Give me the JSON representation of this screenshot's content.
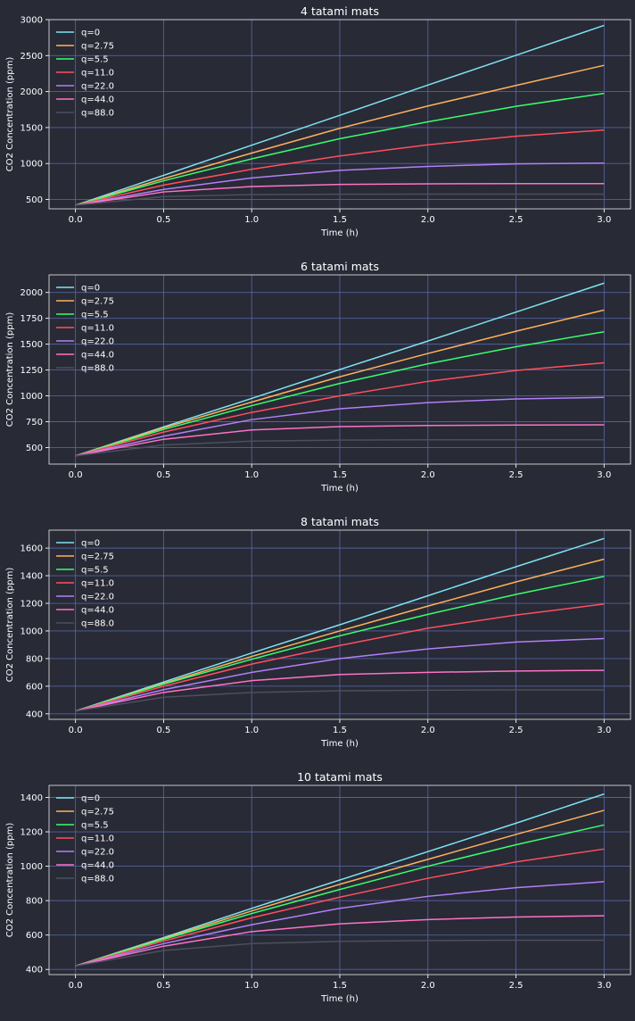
{
  "chart_data": [
    {
      "type": "line",
      "title": "4 tatami mats",
      "xlabel": "Time (h)",
      "ylabel": "CO2 Concentration (ppm)",
      "xlim": [
        -0.15,
        3.15
      ],
      "ylim": [
        370,
        3000
      ],
      "xticks": [
        0.0,
        0.5,
        1.0,
        1.5,
        2.0,
        2.5,
        3.0
      ],
      "xtick_labels": [
        "0.0",
        "0.5",
        "1.0",
        "1.5",
        "2.0",
        "2.5",
        "3.0"
      ],
      "yticks": [
        500,
        1000,
        1500,
        2000,
        2500,
        3000
      ],
      "ytick_labels": [
        "500",
        "1000",
        "1500",
        "2000",
        "2500",
        "3000"
      ],
      "grid": true,
      "legend": "top-left",
      "x": [
        0,
        0.5,
        1.0,
        1.5,
        2.0,
        2.5,
        3.0
      ],
      "series": [
        {
          "name": "q=0",
          "color": "#7fe3f0",
          "values": [
            420,
            835,
            1255,
            1670,
            2090,
            2505,
            2920
          ]
        },
        {
          "name": "q=2.75",
          "color": "#ffb25a",
          "values": [
            420,
            790,
            1145,
            1490,
            1800,
            2085,
            2365
          ]
        },
        {
          "name": "q=5.5",
          "color": "#39ff6b",
          "values": [
            420,
            760,
            1065,
            1345,
            1580,
            1795,
            1975
          ]
        },
        {
          "name": "q=11.0",
          "color": "#ff4f5c",
          "values": [
            420,
            700,
            920,
            1105,
            1260,
            1380,
            1465
          ]
        },
        {
          "name": "q=22.0",
          "color": "#b27ff7",
          "values": [
            420,
            640,
            800,
            905,
            960,
            995,
            1005
          ]
        },
        {
          "name": "q=44.0",
          "color": "#ff72c6",
          "values": [
            420,
            605,
            680,
            710,
            718,
            720,
            720
          ]
        },
        {
          "name": "q=88.0",
          "color": "#4b4f5e",
          "values": [
            420,
            540,
            568,
            573,
            575,
            575,
            575
          ]
        }
      ]
    },
    {
      "type": "line",
      "title": "6 tatami mats",
      "xlabel": "Time (h)",
      "ylabel": "CO2 Concentration (ppm)",
      "xlim": [
        -0.15,
        3.15
      ],
      "ylim": [
        340,
        2170
      ],
      "xticks": [
        0.0,
        0.5,
        1.0,
        1.5,
        2.0,
        2.5,
        3.0
      ],
      "xtick_labels": [
        "0.0",
        "0.5",
        "1.0",
        "1.5",
        "2.0",
        "2.5",
        "3.0"
      ],
      "yticks": [
        500,
        750,
        1000,
        1250,
        1500,
        1750,
        2000
      ],
      "ytick_labels": [
        "500",
        "750",
        "1000",
        "1250",
        "1500",
        "1750",
        "2000"
      ],
      "grid": true,
      "legend": "top-left",
      "x": [
        0,
        0.5,
        1.0,
        1.5,
        2.0,
        2.5,
        3.0
      ],
      "series": [
        {
          "name": "q=0",
          "color": "#7fe3f0",
          "values": [
            420,
            700,
            975,
            1255,
            1530,
            1810,
            2090
          ]
        },
        {
          "name": "q=2.75",
          "color": "#ffb25a",
          "values": [
            420,
            690,
            940,
            1185,
            1410,
            1625,
            1830
          ]
        },
        {
          "name": "q=5.5",
          "color": "#39ff6b",
          "values": [
            420,
            675,
            905,
            1120,
            1310,
            1475,
            1620
          ]
        },
        {
          "name": "q=11.0",
          "color": "#ff4f5c",
          "values": [
            420,
            650,
            840,
            1000,
            1140,
            1245,
            1320
          ]
        },
        {
          "name": "q=22.0",
          "color": "#b27ff7",
          "values": [
            420,
            610,
            770,
            875,
            935,
            970,
            985
          ]
        },
        {
          "name": "q=44.0",
          "color": "#ff72c6",
          "values": [
            420,
            580,
            670,
            702,
            713,
            718,
            720
          ]
        },
        {
          "name": "q=88.0",
          "color": "#4b4f5e",
          "values": [
            420,
            525,
            562,
            572,
            575,
            575,
            575
          ]
        }
      ]
    },
    {
      "type": "line",
      "title": "8 tatami mats",
      "xlabel": "Time (h)",
      "ylabel": "CO2 Concentration (ppm)",
      "xlim": [
        -0.15,
        3.15
      ],
      "ylim": [
        360,
        1730
      ],
      "xticks": [
        0.0,
        0.5,
        1.0,
        1.5,
        2.0,
        2.5,
        3.0
      ],
      "xtick_labels": [
        "0.0",
        "0.5",
        "1.0",
        "1.5",
        "2.0",
        "2.5",
        "3.0"
      ],
      "yticks": [
        400,
        600,
        800,
        1000,
        1200,
        1400,
        1600
      ],
      "ytick_labels": [
        "400",
        "600",
        "800",
        "1000",
        "1200",
        "1400",
        "1600"
      ],
      "grid": true,
      "legend": "top-left",
      "x": [
        0,
        0.5,
        1.0,
        1.5,
        2.0,
        2.5,
        3.0
      ],
      "series": [
        {
          "name": "q=0",
          "color": "#7fe3f0",
          "values": [
            420,
            630,
            840,
            1045,
            1255,
            1465,
            1670
          ]
        },
        {
          "name": "q=2.75",
          "color": "#ffb25a",
          "values": [
            420,
            620,
            815,
            1000,
            1180,
            1355,
            1520
          ]
        },
        {
          "name": "q=5.5",
          "color": "#39ff6b",
          "values": [
            420,
            615,
            795,
            965,
            1120,
            1265,
            1395
          ]
        },
        {
          "name": "q=11.0",
          "color": "#ff4f5c",
          "values": [
            420,
            600,
            760,
            895,
            1020,
            1115,
            1195
          ]
        },
        {
          "name": "q=22.0",
          "color": "#b27ff7",
          "values": [
            420,
            575,
            700,
            800,
            870,
            920,
            945
          ]
        },
        {
          "name": "q=44.0",
          "color": "#ff72c6",
          "values": [
            420,
            555,
            640,
            685,
            700,
            710,
            715
          ]
        },
        {
          "name": "q=88.0",
          "color": "#4b4f5e",
          "values": [
            420,
            520,
            555,
            567,
            571,
            573,
            573
          ]
        }
      ]
    },
    {
      "type": "line",
      "title": "10 tatami mats",
      "xlabel": "Time (h)",
      "ylabel": "CO2 Concentration (ppm)",
      "xlim": [
        -0.15,
        3.15
      ],
      "ylim": [
        370,
        1470
      ],
      "xticks": [
        0.0,
        0.5,
        1.0,
        1.5,
        2.0,
        2.5,
        3.0
      ],
      "xtick_labels": [
        "0.0",
        "0.5",
        "1.0",
        "1.5",
        "2.0",
        "2.5",
        "3.0"
      ],
      "yticks": [
        400,
        600,
        800,
        1000,
        1200,
        1400
      ],
      "ytick_labels": [
        "400",
        "600",
        "800",
        "1000",
        "1200",
        "1400"
      ],
      "grid": true,
      "legend": "top-left",
      "x": [
        0,
        0.5,
        1.0,
        1.5,
        2.0,
        2.5,
        3.0
      ],
      "series": [
        {
          "name": "q=0",
          "color": "#7fe3f0",
          "values": [
            420,
            585,
            755,
            920,
            1085,
            1250,
            1420
          ]
        },
        {
          "name": "q=2.75",
          "color": "#ffb25a",
          "values": [
            420,
            580,
            740,
            895,
            1040,
            1185,
            1325
          ]
        },
        {
          "name": "q=5.5",
          "color": "#39ff6b",
          "values": [
            420,
            575,
            725,
            865,
            1000,
            1125,
            1240
          ]
        },
        {
          "name": "q=11.0",
          "color": "#ff4f5c",
          "values": [
            420,
            565,
            700,
            820,
            930,
            1025,
            1100
          ]
        },
        {
          "name": "q=22.0",
          "color": "#b27ff7",
          "values": [
            420,
            550,
            660,
            755,
            825,
            875,
            910
          ]
        },
        {
          "name": "q=44.0",
          "color": "#ff72c6",
          "values": [
            420,
            535,
            620,
            665,
            690,
            705,
            712
          ]
        },
        {
          "name": "q=88.0",
          "color": "#4b4f5e",
          "values": [
            420,
            510,
            550,
            563,
            568,
            570,
            570
          ]
        }
      ]
    }
  ]
}
